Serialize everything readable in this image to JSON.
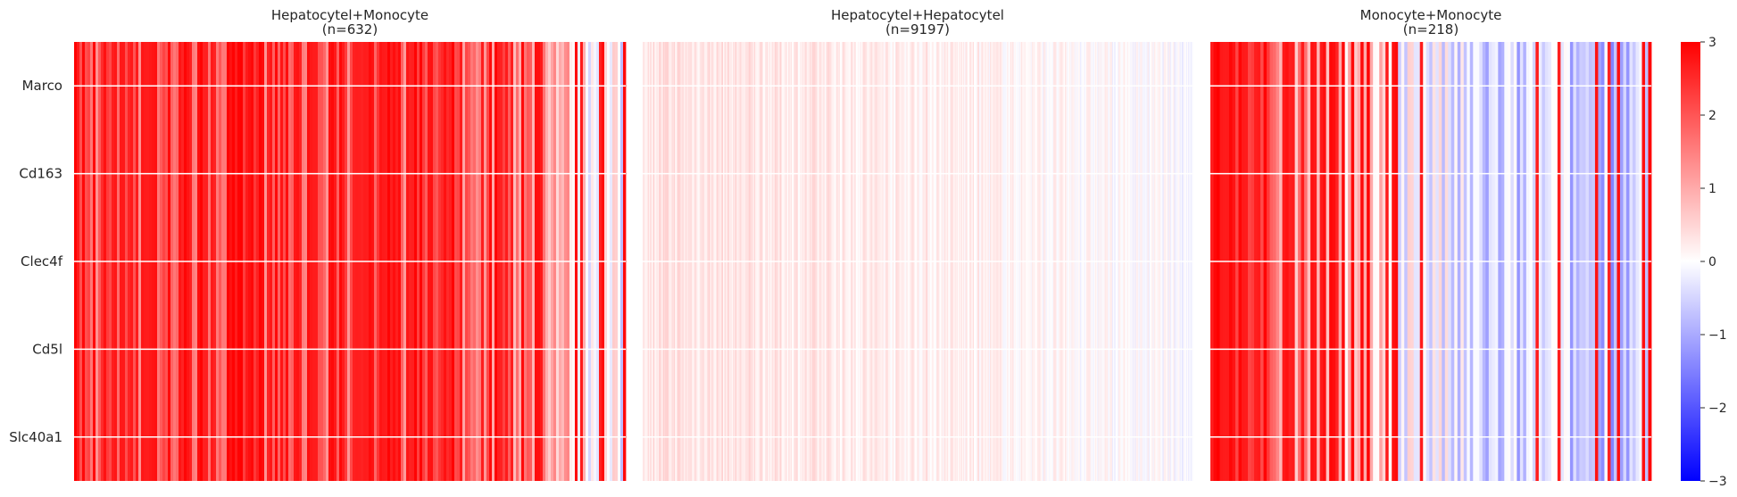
{
  "chart_data": [
    {
      "type": "heatmap",
      "title": "Hepatocytel+Monocyte\n(n=632)",
      "y_categories": [
        "Marco",
        "Cd163",
        "Clec4f",
        "Cd5l",
        "Slc40a1"
      ],
      "n_columns": 632,
      "column_profile": [
        {
          "x_fraction": 0.0,
          "mean_value": 2.0,
          "high_share": 0.55
        },
        {
          "x_fraction": 0.5,
          "mean_value": 2.0,
          "high_share": 0.55
        },
        {
          "x_fraction": 0.85,
          "mean_value": 1.5,
          "high_share": 0.45
        },
        {
          "x_fraction": 0.93,
          "mean_value": 0.3,
          "high_share": 0.15
        },
        {
          "x_fraction": 1.0,
          "mean_value": -0.3,
          "high_share": 0.08
        }
      ]
    },
    {
      "type": "heatmap",
      "title": "Hepatocytel+Hepatocytel\n(n=9197)",
      "y_categories": [
        "Marco",
        "Cd163",
        "Clec4f",
        "Cd5l",
        "Slc40a1"
      ],
      "n_columns": 9197,
      "column_profile": [
        {
          "x_fraction": 0.0,
          "mean_value": 0.35,
          "high_share": 0.0
        },
        {
          "x_fraction": 0.5,
          "mean_value": 0.2,
          "high_share": 0.0
        },
        {
          "x_fraction": 1.0,
          "mean_value": -0.05,
          "high_share": 0.0
        }
      ]
    },
    {
      "type": "heatmap",
      "title": "Monocyte+Monocyte\n(n=218)",
      "y_categories": [
        "Marco",
        "Cd163",
        "Clec4f",
        "Cd5l",
        "Slc40a1"
      ],
      "n_columns": 218,
      "column_profile": [
        {
          "x_fraction": 0.0,
          "mean_value": 2.5,
          "high_share": 0.5
        },
        {
          "x_fraction": 0.22,
          "mean_value": 1.0,
          "high_share": 0.4
        },
        {
          "x_fraction": 0.6,
          "mean_value": -0.6,
          "high_share": 0.15
        },
        {
          "x_fraction": 1.0,
          "mean_value": -0.7,
          "high_share": 0.12
        }
      ]
    }
  ],
  "colorbar": {
    "ticks": [
      3,
      2,
      1,
      0,
      -1,
      -2,
      -3
    ],
    "tick_labels": [
      "3",
      "2",
      "1",
      "0",
      "−1",
      "−2",
      "−3"
    ],
    "vmin": -3,
    "vmax": 3,
    "colormap": "bwr",
    "colors": {
      "low": "#0000ff",
      "mid": "#ffffff",
      "high": "#ff0000"
    }
  },
  "colors": {
    "grid": "#ffffff",
    "text": "#262626"
  }
}
